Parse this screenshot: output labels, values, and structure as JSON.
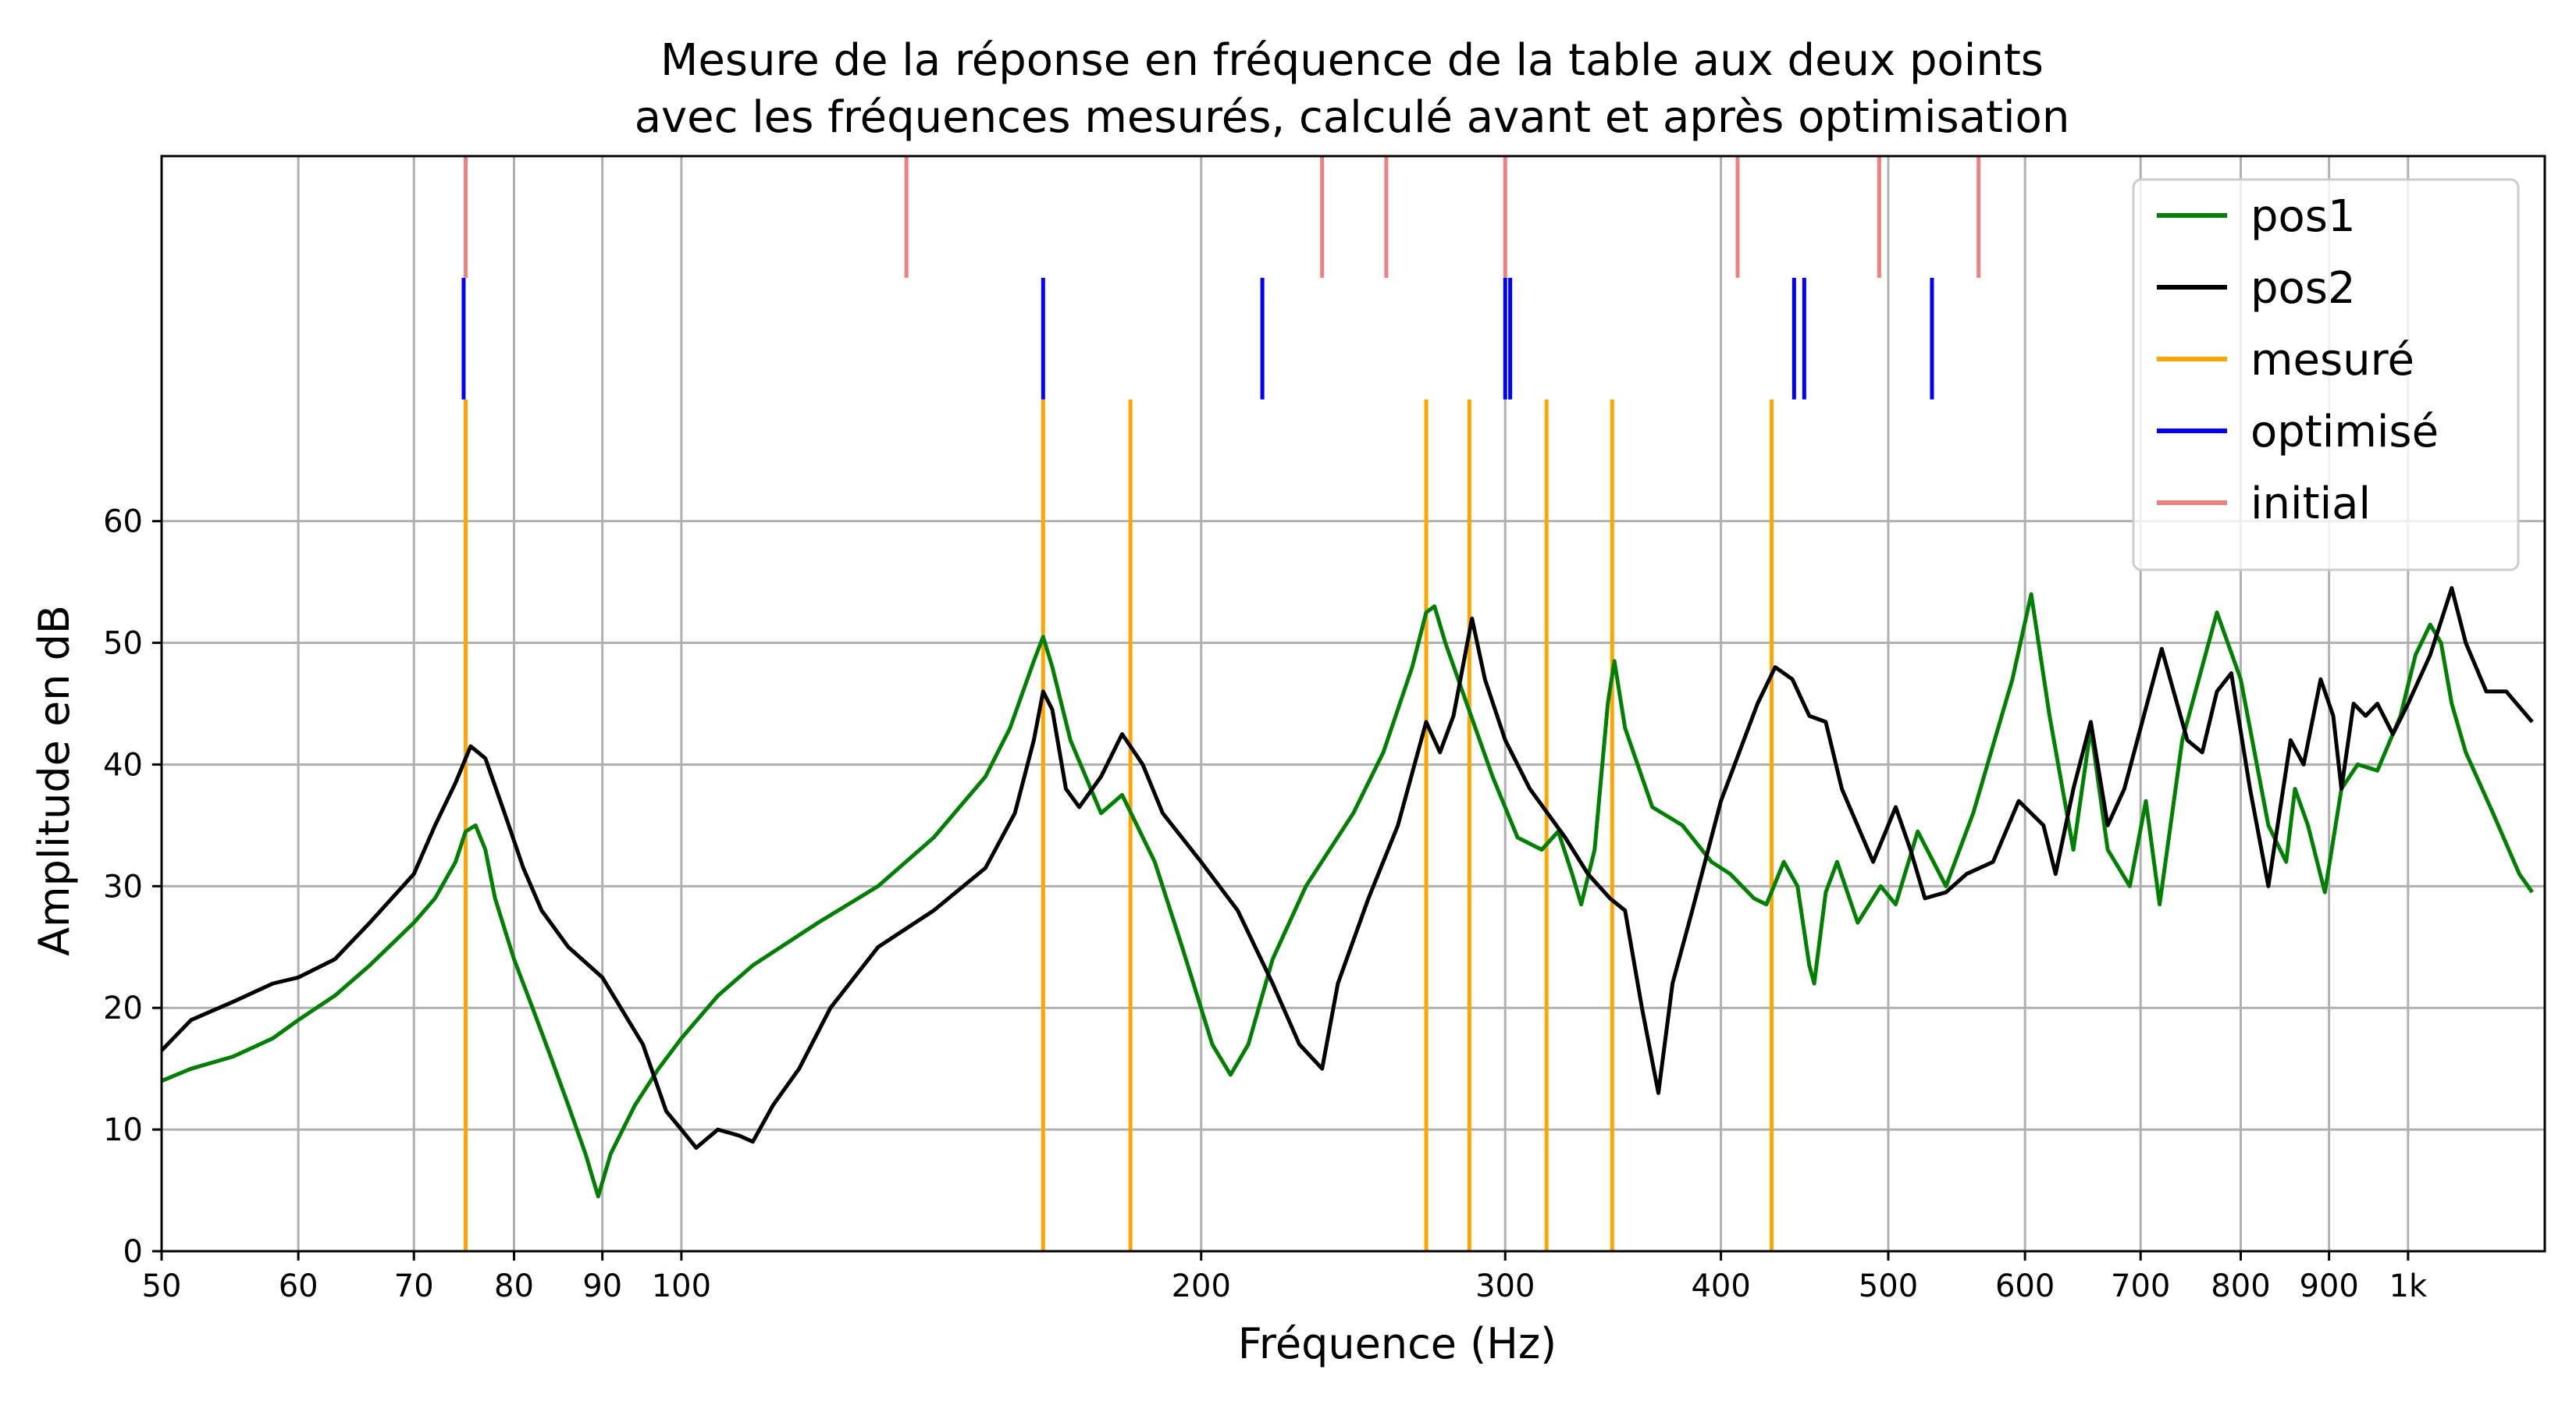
{
  "chart_data": {
    "type": "line",
    "title": [
      "Mesure de la réponse en fréquence de la table aux deux points",
      "avec les fréquences mesurés, calculé avant et après optimisation"
    ],
    "xlabel": "Fréquence (Hz)",
    "ylabel": "Amplitude en dB",
    "x_scale": "log",
    "xlim": [
      50,
      1200
    ],
    "ylim": [
      0,
      90
    ],
    "grid": true,
    "legend_position": "top-right",
    "x_ticks": [
      {
        "value": 50,
        "label": "50"
      },
      {
        "value": 60,
        "label": "60"
      },
      {
        "value": 70,
        "label": "70"
      },
      {
        "value": 80,
        "label": "80"
      },
      {
        "value": 90,
        "label": "90"
      },
      {
        "value": 100,
        "label": "100"
      },
      {
        "value": 200,
        "label": "200"
      },
      {
        "value": 300,
        "label": "300"
      },
      {
        "value": 400,
        "label": "400"
      },
      {
        "value": 500,
        "label": "500"
      },
      {
        "value": 600,
        "label": "600"
      },
      {
        "value": 700,
        "label": "700"
      },
      {
        "value": 800,
        "label": "800"
      },
      {
        "value": 900,
        "label": "900"
      },
      {
        "value": 1000,
        "label": "1k"
      }
    ],
    "y_ticks": [
      0,
      10,
      20,
      30,
      40,
      50,
      60
    ],
    "series": [
      {
        "name": "pos1",
        "color": "#008000",
        "points": [
          [
            50,
            14
          ],
          [
            52,
            15
          ],
          [
            55,
            16
          ],
          [
            58,
            17.5
          ],
          [
            60,
            19
          ],
          [
            63,
            21
          ],
          [
            66,
            23.5
          ],
          [
            70,
            27
          ],
          [
            72,
            29
          ],
          [
            74,
            32
          ],
          [
            75,
            34.5
          ],
          [
            76,
            35
          ],
          [
            77,
            33
          ],
          [
            78,
            29
          ],
          [
            80,
            24
          ],
          [
            82,
            20
          ],
          [
            84,
            16
          ],
          [
            86,
            12
          ],
          [
            88,
            8
          ],
          [
            89.5,
            4.5
          ],
          [
            91,
            8
          ],
          [
            94,
            12
          ],
          [
            97,
            15
          ],
          [
            100,
            17.5
          ],
          [
            105,
            21
          ],
          [
            110,
            23.5
          ],
          [
            120,
            27
          ],
          [
            130,
            30
          ],
          [
            140,
            34
          ],
          [
            150,
            39
          ],
          [
            155,
            43
          ],
          [
            160,
            48.5
          ],
          [
            162,
            50.5
          ],
          [
            164,
            48
          ],
          [
            168,
            42
          ],
          [
            175,
            36
          ],
          [
            180,
            37.5
          ],
          [
            188,
            32
          ],
          [
            195,
            25
          ],
          [
            203,
            17
          ],
          [
            208,
            14.5
          ],
          [
            213,
            17
          ],
          [
            220,
            24
          ],
          [
            230,
            30
          ],
          [
            245,
            36
          ],
          [
            255,
            41
          ],
          [
            265,
            48
          ],
          [
            270,
            52.5
          ],
          [
            273,
            53
          ],
          [
            277,
            50
          ],
          [
            285,
            45
          ],
          [
            295,
            39
          ],
          [
            305,
            34
          ],
          [
            315,
            33
          ],
          [
            322,
            34.5
          ],
          [
            328,
            31
          ],
          [
            332,
            28.5
          ],
          [
            338,
            33
          ],
          [
            344,
            45
          ],
          [
            347,
            48.5
          ],
          [
            352,
            43
          ],
          [
            365,
            36.5
          ],
          [
            380,
            35
          ],
          [
            395,
            32
          ],
          [
            405,
            31
          ],
          [
            418,
            29
          ],
          [
            425,
            28.5
          ],
          [
            435,
            32
          ],
          [
            443,
            30
          ],
          [
            450,
            23.5
          ],
          [
            453,
            22
          ],
          [
            460,
            29.5
          ],
          [
            467,
            32
          ],
          [
            480,
            27
          ],
          [
            495,
            30
          ],
          [
            505,
            28.5
          ],
          [
            520,
            34.5
          ],
          [
            540,
            30
          ],
          [
            560,
            36
          ],
          [
            590,
            47
          ],
          [
            605,
            54
          ],
          [
            620,
            44
          ],
          [
            640,
            33
          ],
          [
            655,
            43
          ],
          [
            670,
            33
          ],
          [
            690,
            30
          ],
          [
            705,
            37
          ],
          [
            718,
            28.5
          ],
          [
            740,
            42
          ],
          [
            775,
            52.5
          ],
          [
            800,
            47
          ],
          [
            830,
            35
          ],
          [
            850,
            32
          ],
          [
            860,
            38
          ],
          [
            875,
            35
          ],
          [
            895,
            29.5
          ],
          [
            915,
            38
          ],
          [
            935,
            40
          ],
          [
            960,
            39.5
          ],
          [
            990,
            44
          ],
          [
            1010,
            49
          ],
          [
            1030,
            51.5
          ],
          [
            1045,
            50
          ],
          [
            1060,
            45
          ],
          [
            1080,
            41
          ],
          [
            1120,
            36
          ],
          [
            1160,
            31
          ],
          [
            1180,
            29.5
          ]
        ]
      },
      {
        "name": "pos2",
        "color": "#000000",
        "points": [
          [
            50,
            16.5
          ],
          [
            52,
            19
          ],
          [
            55,
            20.5
          ],
          [
            58,
            22
          ],
          [
            60,
            22.5
          ],
          [
            63,
            24
          ],
          [
            66,
            27
          ],
          [
            70,
            31
          ],
          [
            72,
            35
          ],
          [
            74,
            38.5
          ],
          [
            75.5,
            41.5
          ],
          [
            77,
            40.5
          ],
          [
            79,
            36
          ],
          [
            81,
            31.5
          ],
          [
            83,
            28
          ],
          [
            86,
            25
          ],
          [
            90,
            22.5
          ],
          [
            95,
            17
          ],
          [
            98,
            11.5
          ],
          [
            100,
            10
          ],
          [
            102,
            8.5
          ],
          [
            105,
            10
          ],
          [
            108,
            9.5
          ],
          [
            110,
            9
          ],
          [
            113,
            12
          ],
          [
            117,
            15
          ],
          [
            122,
            20
          ],
          [
            130,
            25
          ],
          [
            140,
            28
          ],
          [
            150,
            31.5
          ],
          [
            156,
            36
          ],
          [
            160,
            42
          ],
          [
            162,
            46
          ],
          [
            164,
            44.5
          ],
          [
            167,
            38
          ],
          [
            170,
            36.5
          ],
          [
            175,
            39
          ],
          [
            180,
            42.5
          ],
          [
            185,
            40
          ],
          [
            190,
            36
          ],
          [
            200,
            32
          ],
          [
            210,
            28
          ],
          [
            220,
            22
          ],
          [
            228,
            17
          ],
          [
            235,
            15
          ],
          [
            240,
            22
          ],
          [
            250,
            29
          ],
          [
            260,
            35
          ],
          [
            270,
            43.5
          ],
          [
            275,
            41
          ],
          [
            280,
            44
          ],
          [
            287,
            52
          ],
          [
            292,
            47
          ],
          [
            300,
            42
          ],
          [
            310,
            38
          ],
          [
            325,
            34
          ],
          [
            335,
            31
          ],
          [
            345,
            29
          ],
          [
            352,
            28
          ],
          [
            360,
            20
          ],
          [
            368,
            13
          ],
          [
            375,
            22
          ],
          [
            385,
            28
          ],
          [
            400,
            37
          ],
          [
            420,
            45
          ],
          [
            430,
            48
          ],
          [
            440,
            47
          ],
          [
            450,
            44
          ],
          [
            460,
            43.5
          ],
          [
            470,
            38
          ],
          [
            490,
            32
          ],
          [
            505,
            36.5
          ],
          [
            515,
            33
          ],
          [
            525,
            29
          ],
          [
            540,
            29.5
          ],
          [
            555,
            31
          ],
          [
            575,
            32
          ],
          [
            595,
            37
          ],
          [
            615,
            35
          ],
          [
            625,
            31
          ],
          [
            640,
            38
          ],
          [
            655,
            43.5
          ],
          [
            670,
            35
          ],
          [
            685,
            38
          ],
          [
            700,
            43
          ],
          [
            720,
            49.5
          ],
          [
            745,
            42
          ],
          [
            760,
            41
          ],
          [
            775,
            46
          ],
          [
            790,
            47.5
          ],
          [
            810,
            38
          ],
          [
            830,
            30
          ],
          [
            855,
            42
          ],
          [
            870,
            40
          ],
          [
            890,
            47
          ],
          [
            905,
            44
          ],
          [
            915,
            38
          ],
          [
            930,
            45
          ],
          [
            945,
            44
          ],
          [
            960,
            45
          ],
          [
            980,
            42.5
          ],
          [
            1000,
            45
          ],
          [
            1030,
            49
          ],
          [
            1060,
            54.5
          ],
          [
            1080,
            50
          ],
          [
            1110,
            46
          ],
          [
            1140,
            46
          ],
          [
            1180,
            43.5
          ]
        ]
      }
    ],
    "markers": [
      {
        "name": "mesuré",
        "color": "#ffa500",
        "band": "low",
        "values": [
          75,
          162,
          182,
          270,
          286,
          317,
          346,
          428
        ]
      },
      {
        "name": "optimisé",
        "color": "#0000ff",
        "band": "mid",
        "values": [
          74.8,
          162,
          217,
          300,
          302,
          441,
          447,
          530
        ]
      },
      {
        "name": "initial",
        "color": "#f08080",
        "band": "high",
        "values": [
          75,
          135,
          235,
          256,
          300,
          409,
          494,
          564
        ]
      }
    ]
  }
}
